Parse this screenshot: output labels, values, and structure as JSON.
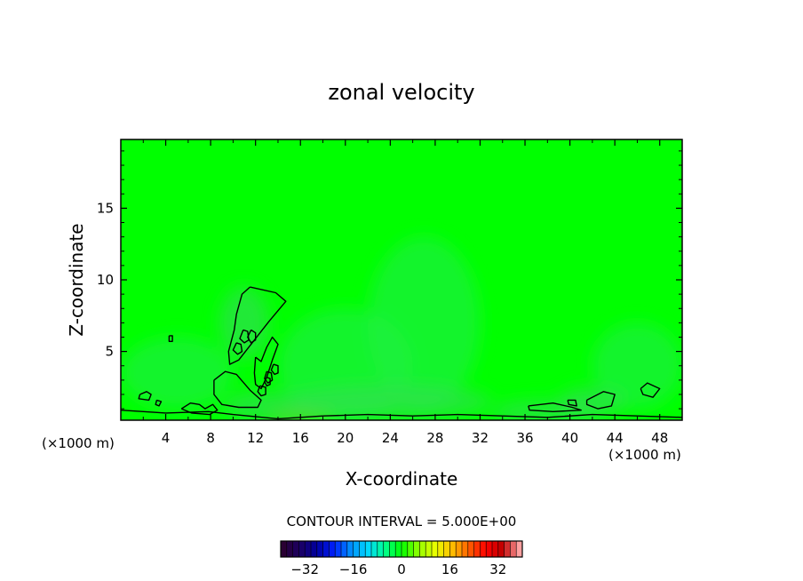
{
  "chart_data": {
    "type": "heatmap",
    "title": "zonal velocity",
    "xlabel": "X-coordinate",
    "ylabel": "Z-coordinate",
    "x_units_left": "(×1000 m)",
    "x_units_right": "(×1000 m)",
    "xlim": [
      0,
      50
    ],
    "ylim": [
      0.2,
      19.8
    ],
    "x_ticks": [
      4,
      8,
      12,
      16,
      20,
      24,
      28,
      32,
      36,
      40,
      44,
      48
    ],
    "y_ticks": [
      5,
      10,
      15
    ],
    "grid": false,
    "contour_interval_label": "CONTOUR INTERVAL = 5.000E+00",
    "colorbar": {
      "range": [
        -40,
        40
      ],
      "ticks": [
        -32,
        -16,
        0,
        16,
        32
      ],
      "colors": [
        "#2a0033",
        "#1a0066",
        "#0000a0",
        "#0020ff",
        "#0090ff",
        "#00d8ff",
        "#00ff90",
        "#00ff00",
        "#90ff00",
        "#e8ff00",
        "#ffc000",
        "#ff6000",
        "#ff0000",
        "#c00000",
        "#ffa0a0"
      ]
    },
    "field_colors": {
      "background": "#00ff00",
      "weak": "#20f040",
      "medium": "#30e050",
      "strong": "#66d040"
    },
    "contours": [
      [
        [
          11.5,
          9.5
        ],
        [
          13.8,
          9.1
        ],
        [
          14.7,
          8.5
        ],
        [
          13.2,
          7.1
        ],
        [
          11.7,
          5.6
        ],
        [
          10.5,
          4.4
        ],
        [
          9.7,
          4.1
        ],
        [
          9.6,
          5.0
        ],
        [
          10.1,
          6.5
        ],
        [
          10.3,
          7.6
        ],
        [
          10.8,
          9.0
        ],
        [
          11.5,
          9.5
        ]
      ],
      [
        [
          10.9,
          6.5
        ],
        [
          11.3,
          6.4
        ],
        [
          11.4,
          5.8
        ],
        [
          11.0,
          5.6
        ],
        [
          10.6,
          5.9
        ],
        [
          10.9,
          6.5
        ]
      ],
      [
        [
          10.3,
          5.6
        ],
        [
          10.7,
          5.5
        ],
        [
          10.8,
          5.0
        ],
        [
          10.4,
          4.8
        ],
        [
          10.0,
          5.1
        ],
        [
          10.3,
          5.6
        ]
      ],
      [
        [
          11.6,
          6.5
        ],
        [
          12.0,
          6.3
        ],
        [
          12.0,
          5.8
        ],
        [
          11.6,
          5.6
        ],
        [
          11.3,
          6.0
        ],
        [
          11.6,
          6.5
        ]
      ],
      [
        [
          13.0,
          3.6
        ],
        [
          13.4,
          3.5
        ],
        [
          13.5,
          3.0
        ],
        [
          13.1,
          2.8
        ],
        [
          12.8,
          3.1
        ],
        [
          13.0,
          3.6
        ]
      ],
      [
        [
          13.6,
          4.1
        ],
        [
          14.0,
          4.0
        ],
        [
          14.0,
          3.5
        ],
        [
          13.7,
          3.4
        ],
        [
          13.4,
          3.7
        ],
        [
          13.6,
          4.1
        ]
      ],
      [
        [
          12.4,
          2.6
        ],
        [
          12.9,
          2.5
        ],
        [
          12.9,
          2.0
        ],
        [
          12.5,
          1.9
        ],
        [
          12.2,
          2.2
        ],
        [
          12.4,
          2.6
        ]
      ],
      [
        [
          13.0,
          3.2
        ],
        [
          13.3,
          3.1
        ],
        [
          13.3,
          2.7
        ],
        [
          13.0,
          2.6
        ],
        [
          12.8,
          2.9
        ],
        [
          13.0,
          3.2
        ]
      ],
      [
        [
          12.0,
          4.6
        ],
        [
          12.5,
          4.3
        ],
        [
          13.0,
          5.3
        ],
        [
          13.5,
          6.0
        ],
        [
          14.0,
          5.5
        ],
        [
          13.5,
          4.4
        ],
        [
          13.0,
          3.2
        ],
        [
          12.5,
          2.4
        ],
        [
          12.0,
          2.7
        ],
        [
          11.9,
          3.5
        ],
        [
          12.0,
          4.6
        ]
      ],
      [
        [
          8.3,
          3.0
        ],
        [
          9.3,
          3.6
        ],
        [
          10.3,
          3.4
        ],
        [
          11.5,
          2.3
        ],
        [
          12.5,
          1.6
        ],
        [
          12.2,
          1.1
        ],
        [
          10.5,
          1.1
        ],
        [
          9.0,
          1.3
        ],
        [
          8.3,
          2.0
        ],
        [
          8.3,
          3.0
        ]
      ],
      [
        [
          1.7,
          2.0
        ],
        [
          2.3,
          2.2
        ],
        [
          2.7,
          2.0
        ],
        [
          2.5,
          1.6
        ],
        [
          1.6,
          1.7
        ],
        [
          1.7,
          2.0
        ]
      ],
      [
        [
          4.3,
          6.1
        ],
        [
          4.6,
          6.1
        ],
        [
          4.6,
          5.7
        ],
        [
          4.3,
          5.7
        ],
        [
          4.3,
          6.1
        ]
      ],
      [
        [
          3.2,
          1.6
        ],
        [
          3.6,
          1.5
        ],
        [
          3.4,
          1.2
        ],
        [
          3.1,
          1.3
        ],
        [
          3.2,
          1.6
        ]
      ],
      [
        [
          0.0,
          0.9
        ],
        [
          4.0,
          0.7
        ],
        [
          7.8,
          0.8
        ],
        [
          10.0,
          0.6
        ],
        [
          14.0,
          0.3
        ],
        [
          18.0,
          0.5
        ],
        [
          22.0,
          0.6
        ],
        [
          26.0,
          0.5
        ],
        [
          30.0,
          0.6
        ],
        [
          34.0,
          0.5
        ],
        [
          38.0,
          0.4
        ],
        [
          42.0,
          0.6
        ],
        [
          46.0,
          0.5
        ],
        [
          50.0,
          0.4
        ]
      ],
      [
        [
          5.4,
          1.0
        ],
        [
          6.2,
          1.4
        ],
        [
          7.0,
          1.3
        ],
        [
          7.5,
          1.0
        ],
        [
          8.2,
          1.3
        ],
        [
          8.6,
          0.9
        ],
        [
          7.9,
          0.6
        ],
        [
          6.3,
          0.7
        ],
        [
          5.4,
          1.0
        ]
      ],
      [
        [
          36.3,
          1.2
        ],
        [
          38.5,
          1.4
        ],
        [
          40.2,
          1.1
        ],
        [
          41.0,
          0.9
        ],
        [
          38.5,
          0.8
        ],
        [
          36.4,
          0.9
        ],
        [
          36.3,
          1.2
        ]
      ],
      [
        [
          41.5,
          1.6
        ],
        [
          43.0,
          2.2
        ],
        [
          44.0,
          2.0
        ],
        [
          43.7,
          1.2
        ],
        [
          42.5,
          1.0
        ],
        [
          41.5,
          1.3
        ],
        [
          41.5,
          1.6
        ]
      ],
      [
        [
          46.3,
          2.4
        ],
        [
          46.9,
          2.8
        ],
        [
          48.0,
          2.4
        ],
        [
          47.4,
          1.8
        ],
        [
          46.5,
          2.0
        ],
        [
          46.3,
          2.4
        ]
      ],
      [
        [
          39.8,
          1.6
        ],
        [
          40.5,
          1.6
        ],
        [
          40.6,
          1.2
        ],
        [
          39.9,
          1.3
        ],
        [
          39.8,
          1.6
        ]
      ]
    ]
  }
}
